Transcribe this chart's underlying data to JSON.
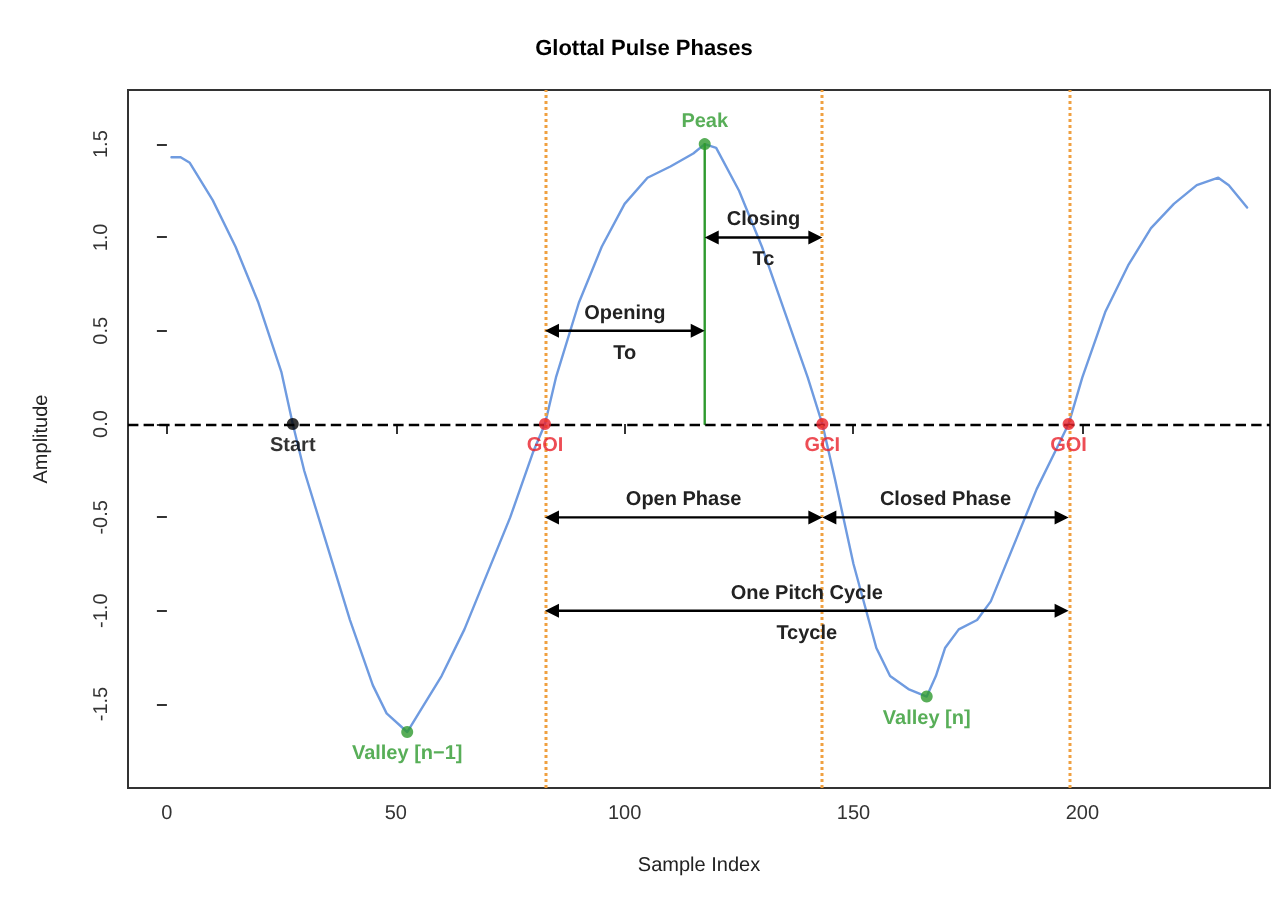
{
  "chart_data": {
    "type": "line",
    "title": "Glottal Pulse Phases",
    "xlabel": "Sample Index",
    "ylabel": "Amplitude",
    "xlim": [
      -8.5,
      241
    ],
    "xticks": [
      0,
      50,
      100,
      150,
      200
    ],
    "ylim": [
      -1.95,
      1.79
    ],
    "yticks": [
      -1.5,
      {
        "value": -1,
        "label": "-1.0"
      },
      -0.5,
      {
        "value": 0,
        "label": "0.0"
      },
      0.5,
      {
        "value": 1,
        "label": "1.0"
      },
      1.5
    ],
    "grid": false,
    "marker": "none",
    "line_style": "solid",
    "series": [
      {
        "type": "line",
        "color": "#6f9be0",
        "x": [
          1,
          3,
          5,
          10,
          15,
          20,
          25,
          27.5,
          30,
          35,
          40,
          45,
          48,
          52.5,
          55,
          60,
          65,
          70,
          75,
          80,
          82.6,
          85,
          90,
          95,
          100,
          105,
          110,
          115,
          117.5,
          120,
          125,
          130,
          135,
          140,
          143.2,
          146,
          150,
          155,
          158,
          162,
          166,
          168,
          170,
          173,
          177,
          180,
          185,
          190,
          195,
          197,
          200,
          205,
          210,
          215,
          220,
          225,
          229.7,
          232,
          236
        ],
        "values": [
          1.43,
          1.43,
          1.4,
          1.2,
          0.95,
          0.65,
          0.28,
          0,
          -0.25,
          -0.65,
          -1.05,
          -1.4,
          -1.55,
          -1.65,
          -1.55,
          -1.35,
          -1.1,
          -0.8,
          -0.5,
          -0.15,
          0,
          0.25,
          0.65,
          0.95,
          1.18,
          1.32,
          1.38,
          1.45,
          1.5,
          1.48,
          1.25,
          0.95,
          0.6,
          0.25,
          0,
          -0.3,
          -0.75,
          -1.2,
          -1.35,
          -1.42,
          -1.46,
          -1.35,
          -1.2,
          -1.1,
          -1.05,
          -0.95,
          -0.65,
          -0.35,
          -0.1,
          0,
          0.25,
          0.6,
          0.85,
          1.05,
          1.18,
          1.28,
          1.32,
          1.28,
          1.16
        ]
      },
      {
        "type": "line",
        "color": "#2e9a2e",
        "x": [
          117.5,
          117.5
        ],
        "values": [
          0,
          1.5
        ]
      },
      {
        "type": "scatter",
        "marker": "circle",
        "x": [
          27.5,
          82.6,
          117.5,
          143.2,
          197,
          52.5,
          166
        ],
        "values": [
          0,
          0,
          1.5,
          0,
          0,
          -1.65,
          -1.46
        ],
        "colors": [
          "#000000",
          "#e8202a",
          "#2e9a2e",
          "#e8202a",
          "#e8202a",
          "#2e9a2e",
          "#2e9a2e"
        ],
        "value_labels": [
          "Start",
          "GOI",
          "Peak",
          "GCI",
          "GOI",
          "Valley [n−1]",
          "Valley [n]"
        ]
      }
    ],
    "ref_lines": [
      {
        "axis": "y",
        "value": 0,
        "color": "#000000",
        "line_style": "dashed"
      },
      {
        "axis": "x",
        "value": 82.6,
        "color": "#f0a040",
        "line_style": "dotted"
      },
      {
        "axis": "x",
        "value": 143.2,
        "color": "#f0a040",
        "line_style": "dotted"
      },
      {
        "axis": "x",
        "value": 197,
        "color": "#f0a040",
        "line_style": "dotted"
      }
    ],
    "annotations": [
      "Opening",
      "To",
      "Closing",
      "Tc",
      "Open Phase",
      "Closed Phase",
      "One Pitch Cycle",
      "Tcycle"
    ]
  }
}
